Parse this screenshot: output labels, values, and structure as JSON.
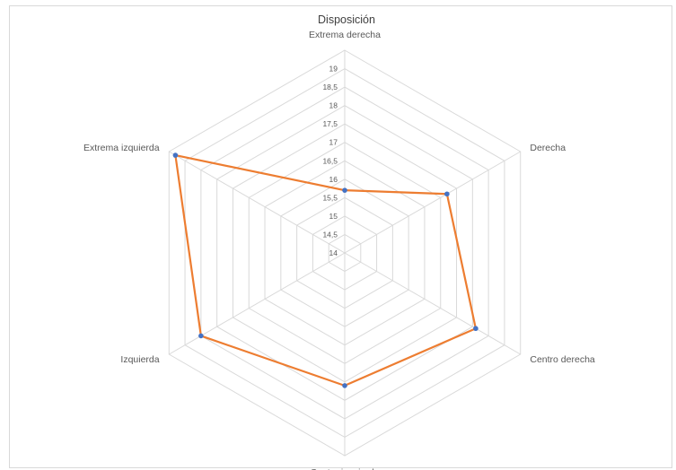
{
  "chart_data": {
    "type": "radar",
    "title": "Disposición",
    "categories": [
      "Extrema derecha",
      "Derecha",
      "Centro derecha",
      "Centro izquierda",
      "Izquierda",
      "Extrema izquierda"
    ],
    "series": [
      {
        "values": [
          15.7,
          17.2,
          18.1,
          17.6,
          18.5,
          19.3
        ]
      }
    ],
    "rlim": [
      14,
      19.5
    ],
    "ticks": [
      "14",
      "14,5",
      "15",
      "15,5",
      "16",
      "16,5",
      "17",
      "17,5",
      "18",
      "18,5",
      "19"
    ],
    "colors": {
      "line": "#ed7d31",
      "marker": "#4472c4",
      "grid": "#d9d9d9"
    },
    "legend": "none",
    "grid": true
  }
}
